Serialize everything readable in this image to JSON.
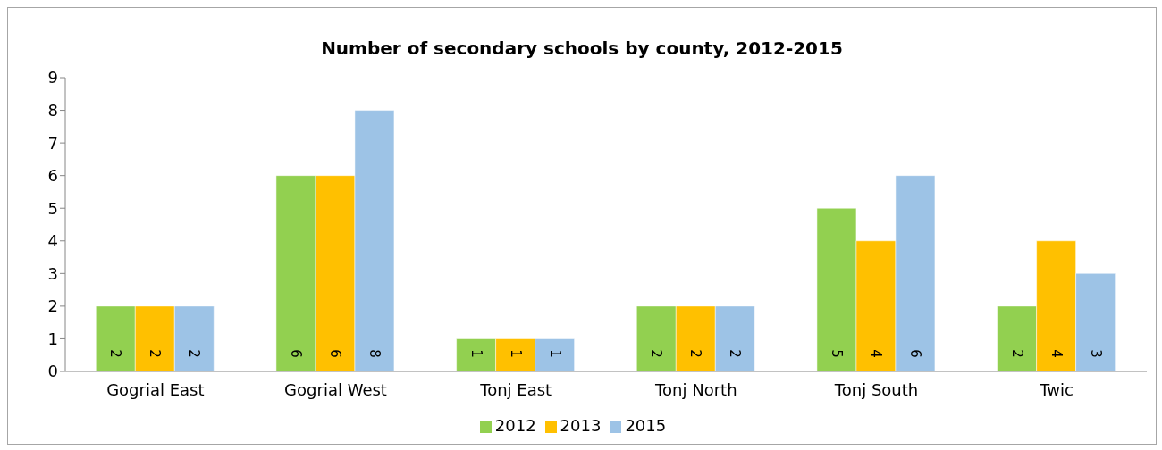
{
  "chart_data": {
    "type": "bar",
    "title": "Number of secondary schools by county, 2012-2015",
    "categories": [
      "Gogrial East",
      "Gogrial West",
      "Tonj East",
      "Tonj North",
      "Tonj South",
      "Twic"
    ],
    "series": [
      {
        "name": "2012",
        "color": "#92d050",
        "values": [
          2,
          6,
          1,
          2,
          5,
          2
        ]
      },
      {
        "name": "2013",
        "color": "#ffc000",
        "values": [
          2,
          6,
          1,
          2,
          4,
          4
        ]
      },
      {
        "name": "2015",
        "color": "#9dc3e6",
        "values": [
          2,
          8,
          1,
          2,
          6,
          3
        ]
      }
    ],
    "ylim": [
      0,
      9
    ],
    "yticks": [
      0,
      1,
      2,
      3,
      4,
      5,
      6,
      7,
      8,
      9
    ],
    "grid": false,
    "legend": "bottom",
    "data_labels": true
  }
}
